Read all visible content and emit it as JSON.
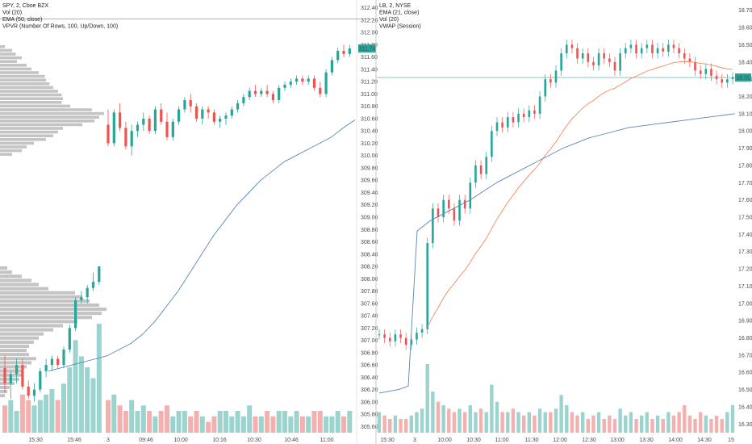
{
  "chart_data": [
    {
      "type": "candlestick",
      "panel": "left",
      "info_lines": [
        "SPY, 2, Cboe BZX",
        "Vol (20)",
        "EMA (50, close)",
        "VPVR (Number Of Rows, 100, Up/Down, 100)"
      ],
      "x_tick_labels": [
        "15:30",
        "15:46",
        "3",
        "09:46",
        "10:00",
        "10:16",
        "10:30",
        "10:46",
        "11:00"
      ],
      "y_tick_labels": [
        "312.40",
        "312.20",
        "312.00",
        "311.80",
        "311.60",
        "311.40",
        "311.20",
        "311.00",
        "310.80",
        "310.60",
        "310.40",
        "310.20",
        "310.00",
        "309.80",
        "309.60",
        "309.40",
        "309.20",
        "309.00",
        "308.80",
        "308.60",
        "308.40",
        "308.20",
        "308.00",
        "307.80",
        "307.60",
        "307.40",
        "307.20",
        "307.00",
        "306.80",
        "306.60",
        "306.40",
        "306.20",
        "306.00",
        "305.80",
        "305.60"
      ],
      "ylim": [
        305.5,
        312.5
      ],
      "last_price_label": "311.74",
      "horizontal_line": 312.22,
      "colors": {
        "up": "#26a69a",
        "down": "#ef5350",
        "ema": "#5b86b4",
        "vpvr": "#b0b0b0"
      },
      "volume_profile_upper_note": "gray histogram bars at left edge",
      "candles_session1": [
        {
          "o": 306.55,
          "h": 306.75,
          "l": 306.15,
          "c": 306.3
        },
        {
          "o": 306.3,
          "h": 306.5,
          "l": 306.05,
          "c": 306.45
        },
        {
          "o": 306.45,
          "h": 306.7,
          "l": 306.3,
          "c": 306.6
        },
        {
          "o": 306.6,
          "h": 306.7,
          "l": 306.2,
          "c": 306.25
        },
        {
          "o": 306.25,
          "h": 306.35,
          "l": 306.05,
          "c": 306.1
        },
        {
          "o": 306.1,
          "h": 306.3,
          "l": 306.0,
          "c": 306.2
        },
        {
          "o": 306.2,
          "h": 306.55,
          "l": 306.15,
          "c": 306.5
        },
        {
          "o": 306.5,
          "h": 306.7,
          "l": 306.4,
          "c": 306.6
        },
        {
          "o": 306.6,
          "h": 306.75,
          "l": 306.5,
          "c": 306.7
        },
        {
          "o": 306.7,
          "h": 306.75,
          "l": 306.55,
          "c": 306.6
        },
        {
          "o": 306.6,
          "h": 306.9,
          "l": 306.55,
          "c": 306.85
        },
        {
          "o": 306.85,
          "h": 307.25,
          "l": 306.8,
          "c": 307.2
        },
        {
          "o": 307.2,
          "h": 307.7,
          "l": 307.15,
          "c": 307.65
        },
        {
          "o": 307.65,
          "h": 307.8,
          "l": 307.6,
          "c": 307.7
        },
        {
          "o": 307.7,
          "h": 307.9,
          "l": 307.6,
          "c": 307.85
        },
        {
          "o": 307.85,
          "h": 308.1,
          "l": 307.8,
          "c": 307.95
        },
        {
          "o": 307.95,
          "h": 308.2,
          "l": 307.9,
          "c": 308.2
        }
      ],
      "candles_session2": [
        {
          "o": 310.5,
          "h": 310.75,
          "l": 310.15,
          "c": 310.2
        },
        {
          "o": 310.2,
          "h": 310.75,
          "l": 310.15,
          "c": 310.7
        },
        {
          "o": 310.7,
          "h": 310.85,
          "l": 310.4,
          "c": 310.45
        },
        {
          "o": 310.45,
          "h": 310.55,
          "l": 310.1,
          "c": 310.15
        },
        {
          "o": 310.15,
          "h": 310.5,
          "l": 310.0,
          "c": 310.4
        },
        {
          "o": 310.4,
          "h": 310.55,
          "l": 310.3,
          "c": 310.5
        },
        {
          "o": 310.5,
          "h": 310.7,
          "l": 310.4,
          "c": 310.6
        },
        {
          "o": 310.6,
          "h": 310.65,
          "l": 310.35,
          "c": 310.4
        },
        {
          "o": 310.4,
          "h": 310.8,
          "l": 310.35,
          "c": 310.75
        },
        {
          "o": 310.75,
          "h": 310.85,
          "l": 310.5,
          "c": 310.55
        },
        {
          "o": 310.55,
          "h": 310.7,
          "l": 310.25,
          "c": 310.3
        },
        {
          "o": 310.3,
          "h": 310.6,
          "l": 310.25,
          "c": 310.55
        },
        {
          "o": 310.55,
          "h": 310.8,
          "l": 310.5,
          "c": 310.75
        },
        {
          "o": 310.75,
          "h": 310.95,
          "l": 310.7,
          "c": 310.9
        },
        {
          "o": 310.9,
          "h": 311.0,
          "l": 310.7,
          "c": 310.8
        },
        {
          "o": 310.8,
          "h": 310.85,
          "l": 310.55,
          "c": 310.6
        },
        {
          "o": 310.6,
          "h": 310.8,
          "l": 310.5,
          "c": 310.75
        },
        {
          "o": 310.75,
          "h": 310.8,
          "l": 310.6,
          "c": 310.7
        },
        {
          "o": 310.7,
          "h": 310.75,
          "l": 310.5,
          "c": 310.55
        },
        {
          "o": 310.55,
          "h": 310.65,
          "l": 310.45,
          "c": 310.6
        },
        {
          "o": 310.6,
          "h": 310.7,
          "l": 310.5,
          "c": 310.65
        },
        {
          "o": 310.65,
          "h": 310.8,
          "l": 310.6,
          "c": 310.75
        },
        {
          "o": 310.75,
          "h": 310.9,
          "l": 310.7,
          "c": 310.85
        },
        {
          "o": 310.85,
          "h": 311.0,
          "l": 310.8,
          "c": 310.95
        },
        {
          "o": 310.95,
          "h": 311.1,
          "l": 310.9,
          "c": 311.05
        },
        {
          "o": 311.05,
          "h": 311.15,
          "l": 310.95,
          "c": 311.0
        },
        {
          "o": 311.0,
          "h": 311.1,
          "l": 310.95,
          "c": 311.05
        },
        {
          "o": 311.05,
          "h": 311.15,
          "l": 310.95,
          "c": 311.0
        },
        {
          "o": 311.0,
          "h": 311.05,
          "l": 310.85,
          "c": 310.9
        },
        {
          "o": 310.9,
          "h": 311.15,
          "l": 310.85,
          "c": 311.1
        },
        {
          "o": 311.1,
          "h": 311.2,
          "l": 311.05,
          "c": 311.15
        },
        {
          "o": 311.15,
          "h": 311.25,
          "l": 311.1,
          "c": 311.2
        },
        {
          "o": 311.2,
          "h": 311.3,
          "l": 311.15,
          "c": 311.25
        },
        {
          "o": 311.25,
          "h": 311.3,
          "l": 311.15,
          "c": 311.2
        },
        {
          "o": 311.2,
          "h": 311.3,
          "l": 311.15,
          "c": 311.25
        },
        {
          "o": 311.25,
          "h": 311.3,
          "l": 311.05,
          "c": 311.1
        },
        {
          "o": 311.1,
          "h": 311.2,
          "l": 310.95,
          "c": 311.0
        },
        {
          "o": 311.0,
          "h": 311.4,
          "l": 310.95,
          "c": 311.35
        },
        {
          "o": 311.35,
          "h": 311.6,
          "l": 311.3,
          "c": 311.55
        },
        {
          "o": 311.55,
          "h": 311.75,
          "l": 311.5,
          "c": 311.7
        },
        {
          "o": 311.7,
          "h": 311.8,
          "l": 311.6,
          "c": 311.65
        },
        {
          "o": 311.65,
          "h": 311.8,
          "l": 311.6,
          "c": 311.74
        }
      ],
      "volumes_session1": [
        0.25,
        0.3,
        0.2,
        0.35,
        0.3,
        0.25,
        0.3,
        0.35,
        0.4,
        0.3,
        0.45,
        0.6,
        0.85,
        0.7,
        0.6,
        0.5,
        1.0
      ],
      "volumes_session2": [
        0.3,
        0.35,
        0.25,
        0.2,
        0.3,
        0.2,
        0.25,
        0.2,
        0.15,
        0.2,
        0.25,
        0.15,
        0.2,
        0.2,
        0.15,
        0.2,
        0.15,
        0.1,
        0.15,
        0.2,
        0.2,
        0.15,
        0.2,
        0.15,
        0.25,
        0.15,
        0.15,
        0.2,
        0.15,
        0.2,
        0.2,
        0.15,
        0.2,
        0.15,
        0.15,
        0.2,
        0.2,
        0.15,
        0.15,
        0.2,
        0.15,
        0.2
      ],
      "ema": [
        306.5,
        306.55,
        306.6,
        306.65,
        306.7,
        306.75,
        306.85,
        306.95,
        307.1,
        307.3,
        307.55,
        307.8,
        308.1,
        308.4,
        308.7,
        308.95,
        309.2,
        309.4,
        309.6,
        309.75,
        309.9,
        310.0,
        310.1,
        310.2,
        310.3,
        310.45,
        310.58
      ]
    },
    {
      "type": "candlestick",
      "panel": "right",
      "info_lines": [
        "LB, 2, NYSE",
        "EMA (21, close)",
        "Vol (20)",
        "VWAP (Session)"
      ],
      "x_tick_labels": [
        "15:30",
        "3",
        "10:00",
        "10:30",
        "11:00",
        "11:30",
        "12:00",
        "12:30",
        "13:00",
        "13:30",
        "14:00",
        "14:30",
        "15"
      ],
      "y_tick_labels": [
        "18.70",
        "18.60",
        "18.50",
        "18.40",
        "18.30",
        "18.20",
        "18.10",
        "18.00",
        "17.90",
        "17.80",
        "17.70",
        "17.60",
        "17.50",
        "17.40",
        "17.30",
        "17.20",
        "17.10",
        "17.00",
        "16.90",
        "16.80",
        "16.70",
        "16.60",
        "16.50",
        "16.40",
        "16.30"
      ],
      "ylim": [
        16.25,
        18.75
      ],
      "last_price_label": "18.31",
      "horizontal_line": 18.31,
      "colors": {
        "up": "#26a69a",
        "down": "#ef5350",
        "ema": "#f5875b",
        "vwap": "#5b86b4"
      },
      "close_path": [
        16.82,
        16.8,
        16.78,
        16.82,
        16.8,
        16.76,
        16.79,
        16.83,
        16.85,
        17.35,
        17.55,
        17.5,
        17.6,
        17.55,
        17.48,
        17.6,
        17.55,
        17.7,
        17.8,
        17.75,
        17.85,
        18.0,
        18.05,
        18.02,
        18.08,
        18.05,
        18.1,
        18.08,
        18.12,
        18.1,
        18.2,
        18.3,
        18.28,
        18.35,
        18.45,
        18.5,
        18.48,
        18.42,
        18.45,
        18.4,
        18.38,
        18.45,
        18.42,
        18.4,
        18.35,
        18.45,
        18.48,
        18.5,
        18.45,
        18.48,
        18.5,
        18.45,
        18.48,
        18.46,
        18.5,
        18.48,
        18.45,
        18.42,
        18.4,
        18.35,
        18.33,
        18.36,
        18.32,
        18.3,
        18.28,
        18.3,
        18.31
      ],
      "volumes": [
        0.3,
        0.25,
        0.2,
        0.25,
        0.2,
        0.2,
        0.25,
        0.3,
        0.35,
        1.0,
        0.6,
        0.45,
        0.4,
        0.35,
        0.3,
        0.35,
        0.3,
        0.4,
        0.3,
        0.35,
        0.3,
        0.7,
        0.45,
        0.3,
        0.3,
        0.35,
        0.3,
        0.25,
        0.3,
        0.25,
        0.35,
        0.3,
        0.3,
        0.35,
        0.55,
        0.4,
        0.3,
        0.25,
        0.3,
        0.2,
        0.25,
        0.3,
        0.2,
        0.25,
        0.2,
        0.35,
        0.25,
        0.3,
        0.2,
        0.25,
        0.3,
        0.2,
        0.25,
        0.2,
        0.3,
        0.25,
        0.3,
        0.4,
        0.25,
        0.2,
        0.3,
        0.25,
        0.2,
        0.25,
        0.2,
        0.3,
        0.4
      ]
    }
  ]
}
